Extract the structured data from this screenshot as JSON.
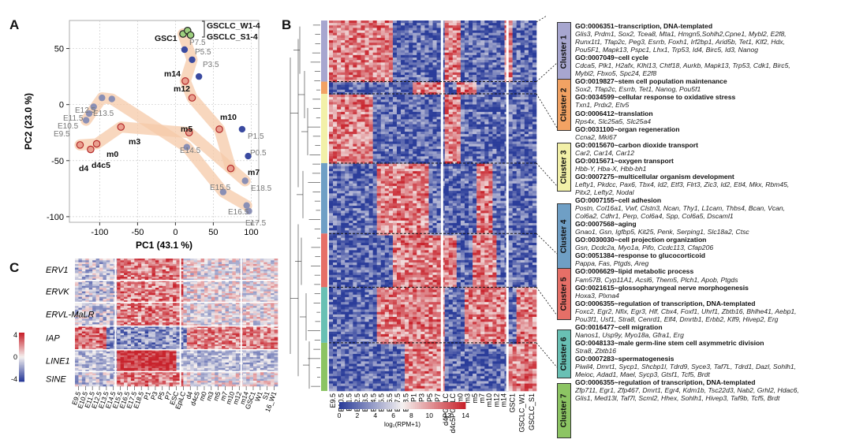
{
  "panels": {
    "a": "A",
    "b": "B",
    "c": "C"
  },
  "colors": {
    "blue": "#2b3d9a",
    "red": "#c8232c",
    "white": "#f5f1f0",
    "trajectory": "#f6c9a8",
    "point_gray": "#8a8fb5",
    "point_blue": "#3a4aa0",
    "point_red": "#b52a2a"
  },
  "chart_data": [
    {
      "type": "scatter",
      "xlabel": "PC1 (43.1 %)",
      "ylabel": "PC2 (23.0 %)",
      "xlim": [
        -140,
        110
      ],
      "ylim": [
        -105,
        75
      ],
      "xticks": [
        "-100",
        "-50",
        "0",
        "50",
        "100"
      ],
      "xtick_values": [
        -100,
        -50,
        0,
        50,
        100
      ],
      "yticks": [
        "50",
        "0",
        "-50",
        "-100"
      ],
      "ytick_values": [
        50,
        0,
        -50,
        -100
      ],
      "grid": true,
      "points": [
        {
          "label": "E9.5",
          "x": -118,
          "y": -14,
          "kind": "gray"
        },
        {
          "label": "E10.5",
          "x": -114,
          "y": -8,
          "kind": "gray"
        },
        {
          "label": "E11.5",
          "x": -108,
          "y": -2,
          "kind": "gray"
        },
        {
          "label": "E12.5",
          "x": -97,
          "y": 6,
          "kind": "gray"
        },
        {
          "label": "E13.5",
          "x": -84,
          "y": 5,
          "kind": "gray"
        },
        {
          "label": "E14.5",
          "x": 15,
          "y": -38,
          "kind": "gray"
        },
        {
          "label": "E15.5",
          "x": 63,
          "y": -78,
          "kind": "gray"
        },
        {
          "label": "E16.5",
          "x": 94,
          "y": -90,
          "kind": "gray"
        },
        {
          "label": "E17.5",
          "x": 97,
          "y": -95,
          "kind": "gray"
        },
        {
          "label": "E18.5",
          "x": 92,
          "y": -68,
          "kind": "gray"
        },
        {
          "label": "P0.5",
          "x": 96,
          "y": -46,
          "kind": "blue"
        },
        {
          "label": "P1.5",
          "x": 88,
          "y": -22,
          "kind": "blue"
        },
        {
          "label": "P3.5",
          "x": 31,
          "y": 25,
          "kind": "blue"
        },
        {
          "label": "P5.5",
          "x": 22,
          "y": 40,
          "kind": "blue"
        },
        {
          "label": "P7.5",
          "x": 12,
          "y": 49,
          "kind": "blue"
        },
        {
          "label": "GSC1",
          "x": 10,
          "y": 63,
          "kind": "green"
        },
        {
          "label": "GSCLC_W1-4",
          "x": 16,
          "y": 66,
          "kind": "green"
        },
        {
          "label": "GSCLC_S1-4",
          "x": 20,
          "y": 62,
          "kind": "green"
        },
        {
          "label": "m14",
          "x": 13,
          "y": 21,
          "kind": "red"
        },
        {
          "label": "m12",
          "x": 22,
          "y": 6,
          "kind": "red"
        },
        {
          "label": "m10",
          "x": 58,
          "y": -22,
          "kind": "red"
        },
        {
          "label": "m5",
          "x": 18,
          "y": -25,
          "kind": "red"
        },
        {
          "label": "m7",
          "x": 73,
          "y": -57,
          "kind": "red"
        },
        {
          "label": "m3",
          "x": -72,
          "y": -20,
          "kind": "red"
        },
        {
          "label": "m0",
          "x": -104,
          "y": -35,
          "kind": "red"
        },
        {
          "label": "d4",
          "x": -126,
          "y": -36,
          "kind": "red"
        },
        {
          "label": "d4c5",
          "x": -112,
          "y": -40,
          "kind": "red"
        }
      ],
      "point_labels_shown": [
        "GSCLC_W1-4",
        "GSCLC_S1-4",
        "GSC1",
        "P7.5",
        "P5.5",
        "P3.5",
        "m14",
        "m12",
        "E12.5",
        "E13.5",
        "E11.5",
        "E10.5",
        "E9.5",
        "m10",
        "P1.5",
        "m5",
        "E14.5",
        "m3",
        "m0",
        "d4",
        "d4c5",
        "P0.5",
        "m7",
        "E15.5",
        "E18.5",
        "E16.5",
        "E17.5"
      ]
    },
    {
      "type": "heatmap",
      "title": "",
      "row_groups": [
        "ERV1",
        "ERVK",
        "ERVL-MaLR",
        "IAP",
        "LINE1",
        "SINE"
      ],
      "legend_ticks": [
        "4",
        "0",
        "-4"
      ],
      "column_labels": [
        "E9.5",
        "E10.5",
        "E11.5",
        "E12.5",
        "E13.5",
        "E14.5",
        "E15.5",
        "E16.5",
        "E17.5",
        "E18.5",
        "P1",
        "P3",
        "P5",
        "P7",
        "ESC",
        "EpiLC",
        "d4",
        "d4c5",
        "m0",
        "m3",
        "m5",
        "m7",
        "m10",
        "m12",
        "m14",
        "GSC1",
        "W1",
        "S1",
        "16_W1"
      ],
      "column_labels_shown": [
        "E9.5",
        "E10.5",
        "E11.5",
        "E12.5",
        "E13.5",
        "E14.5",
        "E15.5",
        "E16.5",
        "E17.5",
        "E18.5",
        "P1",
        "P3",
        "P5",
        "P7",
        "ESC",
        "EpiLC",
        "d4",
        "d4c5",
        "m0",
        "m3",
        "m5",
        "m7",
        "m10",
        "m12",
        "m14",
        "GSC1",
        "W1",
        "S1",
        "16_W1"
      ]
    },
    {
      "type": "heatmap",
      "colorbar_label": "log₂(RPM+1)",
      "colorbar_ticks": [
        "0",
        "2",
        "4",
        "6",
        "8",
        "10",
        "12",
        "14"
      ],
      "colorbar_range": [
        0,
        14
      ],
      "column_labels": [
        "E9.5",
        "E10.5",
        "E11.5",
        "E12.5",
        "E13.5",
        "E14.5",
        "E15.5",
        "E16.5",
        "E17.5",
        "E18.5",
        "P1",
        "P3",
        "P5",
        "P7",
        "d4PGCLC",
        "d4c5PGCLC",
        "m0",
        "m3",
        "m5",
        "m7",
        "m10",
        "m12",
        "m14",
        "GSC1",
        "GSCLC_W1",
        "GSCLC_S1"
      ],
      "column_labels_shown": [
        "E9.5",
        "E10.5",
        "E11.5",
        "E12.5",
        "E13.5",
        "E14.5",
        "E15.5",
        "E16.5",
        "E17.5",
        "E18.5",
        "P1",
        "P3",
        "P5",
        "P7",
        "d4PGCLC",
        "d4c5PGCLC",
        "m0",
        "m3",
        "m5",
        "m7",
        "m10",
        "m12",
        "m14",
        "GSC1",
        "GSCLC_W1",
        "GSCLC_S1"
      ],
      "clusters": [
        {
          "name": "Cluster 1",
          "color": "#a7a6cf"
        },
        {
          "name": "Cluster 2",
          "color": "#f2a263"
        },
        {
          "name": "Cluster 3",
          "color": "#f2f0a8"
        },
        {
          "name": "Cluster 4",
          "color": "#6f9fc5"
        },
        {
          "name": "Cluster 5",
          "color": "#e66f67"
        },
        {
          "name": "Cluster 6",
          "color": "#69c0b4"
        },
        {
          "name": "Cluster 7",
          "color": "#8cc463"
        }
      ]
    }
  ],
  "go_terms": [
    {
      "cluster": 1,
      "lines": [
        {
          "t": "GO:0006351~transcription, DNA-templated",
          "b": true
        },
        {
          "t": "Glis3, Prdm1, Sox2, Tcea8, Mta1, Hmgn5,Sohlh2,Cpne1, Mybl2, E2f8,",
          "b": false
        },
        {
          "t": "Runx1t1, Tfap2c, Peg3, Esrrb, Foxh1, Irf2bp1, Arid5b, Tet1, Klf2, Hdx,",
          "b": false
        },
        {
          "t": "Pou5F1, Mapk13, Pspc1, Lhx1, Trp53, Id4, Birc5, Id3, Nanog",
          "b": false
        },
        {
          "t": "GO:0007049~cell cycle",
          "b": true
        },
        {
          "t": "Cdca5, Plk1, H2afx, Klhl13, Chtf18, Aurkb, Mapk13, Trp53, Cdk1, Birc5,",
          "b": false
        },
        {
          "t": "Mybl2, Fbxo5, Spc24, E2f8",
          "b": false
        },
        {
          "t": "GO:0019827~stem cell population maintenance",
          "b": true
        },
        {
          "t": "Sox2, Tfap2c, Esrrb, Tet1, Nanog, Pou5f1",
          "b": false
        }
      ]
    },
    {
      "cluster": 2,
      "lines": [
        {
          "t": "GO:0034599~cellular response to oxidative stress",
          "b": true
        },
        {
          "t": "Txn1, Prdx2, Etv5",
          "b": false
        },
        {
          "t": "GO:0006412~translation",
          "b": true
        },
        {
          "t": "Rps4x, Slc25a5, Slc25a4",
          "b": false
        },
        {
          "t": "GO:0031100~organ regeneration",
          "b": true
        },
        {
          "t": "Ccna2, Mki67",
          "b": false
        }
      ]
    },
    {
      "cluster": 3,
      "lines": [
        {
          "t": "GO:0015670~carbon dioxide transport",
          "b": true
        },
        {
          "t": "Car2, Car14, Car12",
          "b": false
        },
        {
          "t": "GO:0015671~oxygen transport",
          "b": true
        },
        {
          "t": "Hbb-Y, Hba-X, Hbb-bh1",
          "b": false
        },
        {
          "t": "GO:0007275~multicellular organism development",
          "b": true
        },
        {
          "t": "Lefty1, Pkdcc, Pax6, Tbx4, Id2, Etf3, Flrt3, Zic3, Id2, Etl4, Mkx, Rbm45,",
          "b": false
        },
        {
          "t": "Pitx2, Lefty2, Nodal",
          "b": false
        }
      ]
    },
    {
      "cluster": 4,
      "lines": [
        {
          "t": "GO:0007155~cell adhesion",
          "b": true
        },
        {
          "t": "Postn, Col16a1, Vwf, Clstn3, Ncan, Thy1, L1cam, Thbs4, Bcan, Vcan,",
          "b": false
        },
        {
          "t": "Col6a2, Cdhr1, Perp, Col6a4, Spp, Col6a5, Dscaml1",
          "b": false
        },
        {
          "t": "GO:0007568~aging",
          "b": true
        },
        {
          "t": "Gnao1, Gsn, Igfbp5, Kit25, Penk, Serping1, Slc18a2, Ctsc",
          "b": false
        },
        {
          "t": "GO:0030030~cell projection organization",
          "b": true
        },
        {
          "t": "Gsn, Dcdc2a, Myo1a, Pifo, Ccdc113, Cfap206",
          "b": false
        }
      ]
    },
    {
      "cluster": 5,
      "lines": [
        {
          "t": "GO:0051384~response to glucocorticoid",
          "b": true
        },
        {
          "t": "Pappa, Fas, Ptgds, Areg",
          "b": false
        },
        {
          "t": "GO:0006629~lipid metabolic process",
          "b": true
        },
        {
          "t": "Fam57B, Cyp11A1, Acsl6, Them5, Plch1, Apob, Ptgds",
          "b": false
        },
        {
          "t": "GO:0021615~glossopharyngeal nerve morphogenesis",
          "b": true
        },
        {
          "t": "Hoxa3, Plxna4",
          "b": false
        }
      ]
    },
    {
      "cluster": 6,
      "lines": [
        {
          "t": "GO:0006355~regulation of transcription, DNA-templated",
          "b": true
        },
        {
          "t": "Foxc2, Egr2, Nfix, Egr3, Hlf, Cbx4, Foxf1, Uhrf1, Zbtb16, Bhlhe41, Aebp1,",
          "b": false
        },
        {
          "t": "Pou3f1, Usf1, Stra8, Cenrd1, Elf4, Dmrtb1, Erbb2, Klf9, Hivep2, Erg",
          "b": false
        },
        {
          "t": "GO:0016477~cell migration",
          "b": true
        },
        {
          "t": "Nanos1, Usp9y, Myo18a, Gfra1, Erg",
          "b": false
        },
        {
          "t": "GO:0048133~male germ-line stem cell asymmetric division",
          "b": true
        },
        {
          "t": "Stra8, Zbtb16",
          "b": false
        }
      ]
    },
    {
      "cluster": 7,
      "lines": [
        {
          "t": "GO:0007283~spermatogenesis",
          "b": true
        },
        {
          "t": "Piwil4, Dmrt1, Sycp1, Shcbp1l, Tdrd9, Syce3, Taf7L, Tdrd1, Dazl, Sohlh1,",
          "b": false
        },
        {
          "t": "Meioc, Adad1, Mael, Sycp3, Gtsf1, Tcf5, Brdt",
          "b": false
        },
        {
          "t": "GO:0006355~regulation of transcription, DNA-templated",
          "b": true
        },
        {
          "t": "Zfp711, Egr1, Zfp467, Dmrt1, Egr4, Kdm1b, Tsc22d3, Nab2, Grhl2, Hdac6,",
          "b": false
        },
        {
          "t": "Glis1, Med13l, Taf7l, Scml2, Hhex, Sohlh1, Hivep3, Taf9b, Tcf5, Brdt",
          "b": false
        }
      ]
    }
  ]
}
